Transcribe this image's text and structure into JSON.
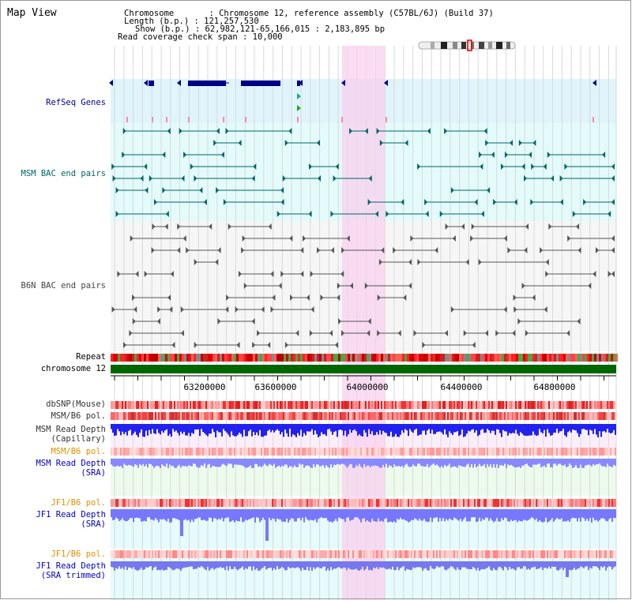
{
  "view_title": "Map View",
  "info": {
    "chromosome": "Chromosome       : Chromosome 12, reference assembly (C57BL/6J) (Build 37)",
    "length": "Length (b.p.) : 121,257,530",
    "show": "Show (b.p.) : 62,982,121-65,166,015 : 2,183,895 bp",
    "coverage": "Read coverage check span : 10,000"
  },
  "tracks": {
    "refseq": "RefSeq Genes",
    "msm_bac": "MSM BAC end pairs",
    "b6n_bac": "B6N BAC end pairs",
    "repeat": "Repeat",
    "chromosome": "chromosome 12",
    "dbsnp": "dbSNP(Mouse)",
    "msm_b6_pol_1": "MSM/B6 pol.",
    "msm_depth_cap_1": "MSM Read Depth",
    "msm_depth_cap_2": "(Capillary)",
    "msm_b6_pol_2": "MSM/B6 pol.",
    "msm_depth_sra_1": "MSM Read Depth",
    "msm_depth_sra_2": "(SRA)",
    "jf1_b6_pol_1": "JF1/B6 pol.",
    "jf1_depth_sra_1": "JF1 Read Depth",
    "jf1_depth_sra_2": "(SRA)",
    "jf1_b6_pol_2": "JF1/B6 pol.",
    "jf1_depth_trim_1": "JF1 Read Depth",
    "jf1_depth_trim_2": "(SRA trimmed)"
  },
  "axis_ticks": [
    "63200000",
    "63600000",
    "64000000",
    "64400000",
    "64800000"
  ],
  "colors": {
    "refseq": "#000088",
    "msm": "#006666",
    "b6n": "#555555",
    "orange": "#e09000",
    "blue": "#0000cc",
    "highlight": "#f8d8f0",
    "chromosome": "#006600"
  }
}
